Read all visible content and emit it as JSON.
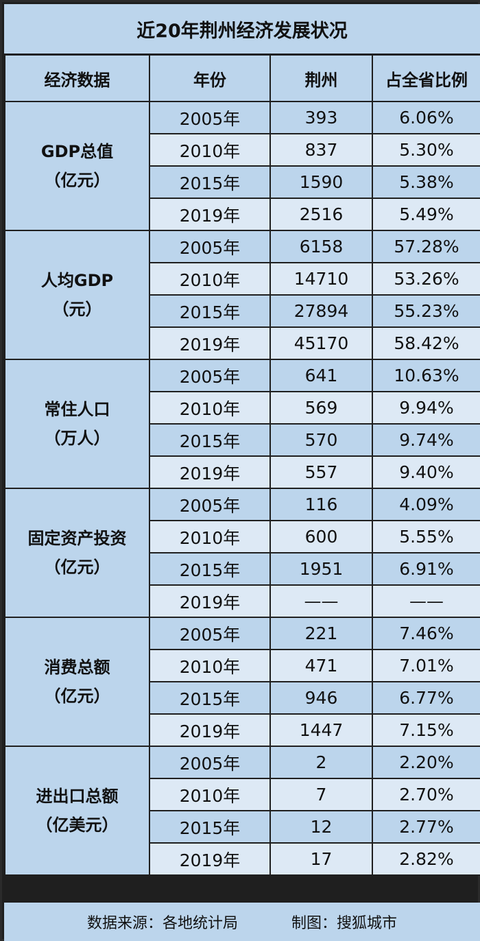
{
  "title": "近20年荆州经济发展状况",
  "headers": [
    "经济数据",
    "年份",
    "荆州",
    "占全省比例"
  ],
  "chart_data": {
    "type": "table",
    "columns": [
      "经济数据",
      "年份",
      "荆州",
      "占全省比例"
    ],
    "groups": [
      {
        "metric": "GDP总值",
        "unit": "（亿元）",
        "rows": [
          {
            "year": "2005年",
            "value": "393",
            "share": "6.06%"
          },
          {
            "year": "2010年",
            "value": "837",
            "share": "5.30%"
          },
          {
            "year": "2015年",
            "value": "1590",
            "share": "5.38%"
          },
          {
            "year": "2019年",
            "value": "2516",
            "share": "5.49%"
          }
        ]
      },
      {
        "metric": "人均GDP",
        "unit": "（元）",
        "rows": [
          {
            "year": "2005年",
            "value": "6158",
            "share": "57.28%"
          },
          {
            "year": "2010年",
            "value": "14710",
            "share": "53.26%"
          },
          {
            "year": "2015年",
            "value": "27894",
            "share": "55.23%"
          },
          {
            "year": "2019年",
            "value": "45170",
            "share": "58.42%"
          }
        ]
      },
      {
        "metric": "常住人口",
        "unit": "（万人）",
        "rows": [
          {
            "year": "2005年",
            "value": "641",
            "share": "10.63%"
          },
          {
            "year": "2010年",
            "value": "569",
            "share": "9.94%"
          },
          {
            "year": "2015年",
            "value": "570",
            "share": "9.74%"
          },
          {
            "year": "2019年",
            "value": "557",
            "share": "9.40%"
          }
        ]
      },
      {
        "metric": "固定资产投资",
        "unit": "（亿元）",
        "rows": [
          {
            "year": "2005年",
            "value": "116",
            "share": "4.09%"
          },
          {
            "year": "2010年",
            "value": "600",
            "share": "5.55%"
          },
          {
            "year": "2015年",
            "value": "1951",
            "share": "6.91%"
          },
          {
            "year": "2019年",
            "value": "——",
            "share": "——"
          }
        ]
      },
      {
        "metric": "消费总额",
        "unit": "（亿元）",
        "rows": [
          {
            "year": "2005年",
            "value": "221",
            "share": "7.46%"
          },
          {
            "year": "2010年",
            "value": "471",
            "share": "7.01%"
          },
          {
            "year": "2015年",
            "value": "946",
            "share": "6.77%"
          },
          {
            "year": "2019年",
            "value": "1447",
            "share": "7.15%"
          }
        ]
      },
      {
        "metric": "进出口总额",
        "unit": "（亿美元）",
        "rows": [
          {
            "year": "2005年",
            "value": "2",
            "share": "2.20%"
          },
          {
            "year": "2010年",
            "value": "7",
            "share": "2.70%"
          },
          {
            "year": "2015年",
            "value": "12",
            "share": "2.77%"
          },
          {
            "year": "2019年",
            "value": "17",
            "share": "2.82%"
          }
        ]
      }
    ]
  },
  "footer": {
    "source": "数据来源：各地统计局",
    "credit": "制图：搜狐城市"
  },
  "colors": {
    "header_bg": "#bcd5ec",
    "row_alt_bg": "#bcd5ec",
    "row_plain_bg": "#dde9f5",
    "border": "#1f1f1f"
  }
}
